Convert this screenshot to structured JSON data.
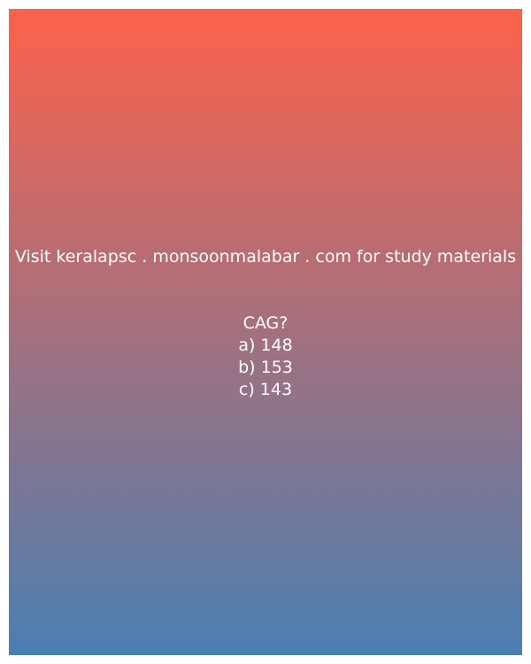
{
  "colors": {
    "gradient_top": "#fd624a",
    "gradient_bottom": "#4a7fb2",
    "text": "#ffffff"
  },
  "card": {
    "headline": "Visit keralapsc . monsoonmalabar . com for study materials",
    "question": "CAG?",
    "options": [
      "a) 148",
      "b) 153",
      "c) 143"
    ]
  }
}
